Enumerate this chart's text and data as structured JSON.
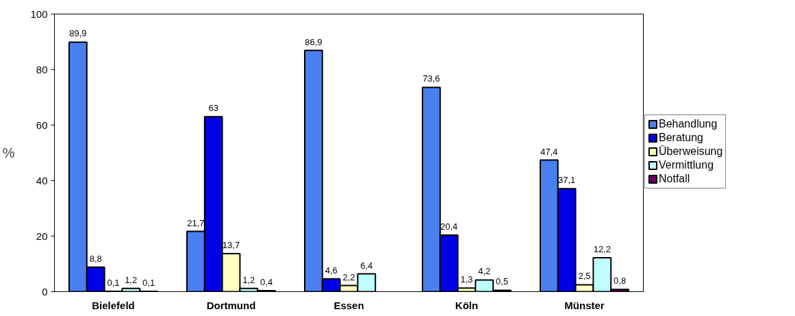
{
  "chart_data": {
    "type": "bar",
    "ylabel": "%",
    "categories": [
      "Bielefeld",
      "Dortmund",
      "Essen",
      "Köln",
      "Münster"
    ],
    "series": [
      {
        "name": "Behandlung",
        "color": "#4a7ff0",
        "values": [
          89.9,
          21.7,
          86.9,
          73.6,
          47.4
        ],
        "value_labels": [
          "89,9",
          "21,7",
          "86,9",
          "73,6",
          "47,4"
        ]
      },
      {
        "name": "Beratung",
        "color": "#0000e6",
        "values": [
          8.8,
          63,
          4.6,
          20.4,
          37.1
        ],
        "value_labels": [
          "8,8",
          "63",
          "4,6",
          "20,4",
          "37,1"
        ]
      },
      {
        "name": "Überweisung",
        "color": "#ffffc0",
        "values": [
          0.1,
          13.7,
          2.2,
          1.3,
          2.5
        ],
        "value_labels": [
          "0,1",
          "13,7",
          "2,2",
          "1,3",
          "2,5"
        ]
      },
      {
        "name": "Vermittlung",
        "color": "#c0ffff",
        "values": [
          1.2,
          1.2,
          6.4,
          4.2,
          12.2
        ],
        "value_labels": [
          "1,2",
          "1,2",
          "6,4",
          "4,2",
          "12,2"
        ]
      },
      {
        "name": "Notfall",
        "color": "#660066",
        "values": [
          0.1,
          0.4,
          null,
          0.5,
          0.8
        ],
        "value_labels": [
          "0,1",
          "0,4",
          null,
          "0,5",
          "0,8"
        ]
      }
    ],
    "ylim": [
      0,
      100
    ],
    "yticks": [
      0,
      20,
      40,
      60,
      80,
      100
    ],
    "grid": false,
    "legend": "right"
  }
}
